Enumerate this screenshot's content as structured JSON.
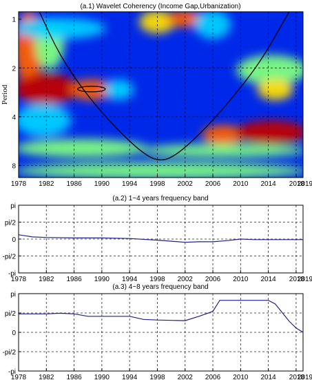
{
  "chart_data": [
    {
      "type": "heatmap",
      "title": "(a.1)  Wavelet Coherency (Income Gap,Urbanization)",
      "ylabel": "Period",
      "xlabel": "",
      "x_ticks": [
        "1978",
        "1982",
        "1986",
        "1990",
        "1994",
        "1998",
        "2002",
        "2006",
        "2010",
        "2014",
        "2018",
        "2019"
      ],
      "y_ticks": [
        "1",
        "2",
        "4",
        "8"
      ],
      "xlim": [
        1978,
        2019
      ],
      "ylim_period": [
        0.9,
        9.5
      ],
      "y_scale": "log2",
      "grid": true,
      "colormap": [
        "#00008f",
        "#0030ff",
        "#00d0ff",
        "#80ff80",
        "#ffe000",
        "#ff6000",
        "#c00000"
      ],
      "cone_of_influence": {
        "x": [
          1981,
          1984,
          1988,
          1992,
          1996,
          1998.5,
          2001,
          2005,
          2009,
          2013,
          2017
        ],
        "period": [
          0.9,
          1.7,
          3.0,
          4.7,
          6.8,
          7.6,
          6.8,
          4.7,
          3.0,
          1.8,
          0.9
        ]
      },
      "significance_contour": {
        "x_range": [
          1986.5,
          1990.5
        ],
        "period_center": 2.7
      },
      "regions": [
        {
          "x": [
            1978,
            1981
          ],
          "p": [
            0.9,
            2.5
          ],
          "v": 0.85
        },
        {
          "x": [
            1981,
            1984
          ],
          "p": [
            1.0,
            2.0
          ],
          "v": 0.55
        },
        {
          "x": [
            1978,
            1986
          ],
          "p": [
            2.2,
            3.3
          ],
          "v": 0.95
        },
        {
          "x": [
            1986,
            1991
          ],
          "p": [
            2.4,
            3.1
          ],
          "v": 0.9
        },
        {
          "x": [
            1991,
            1994
          ],
          "p": [
            2.4,
            3.1
          ],
          "v": 0.4
        },
        {
          "x": [
            1978,
            1985
          ],
          "p": [
            3.4,
            5.2
          ],
          "v": 0.35
        },
        {
          "x": [
            1996,
            2000
          ],
          "p": [
            0.9,
            1.2
          ],
          "v": 0.7
        },
        {
          "x": [
            2000,
            2004
          ],
          "p": [
            0.9,
            1.1
          ],
          "v": 0.9
        },
        {
          "x": [
            2004,
            2008
          ],
          "p": [
            0.9,
            1.3
          ],
          "v": 0.4
        },
        {
          "x": [
            2010,
            2019
          ],
          "p": [
            1.7,
            2.5
          ],
          "v": 0.45
        },
        {
          "x": [
            2013,
            2017
          ],
          "p": [
            2.4,
            3.1
          ],
          "v": 0.65
        },
        {
          "x": [
            2005,
            2010
          ],
          "p": [
            4.6,
            5.8
          ],
          "v": 0.75
        },
        {
          "x": [
            2010,
            2019
          ],
          "p": [
            4.3,
            5.8
          ],
          "v": 0.92
        },
        {
          "x": [
            1978,
            1996
          ],
          "p": [
            5.6,
            7.0
          ],
          "v": 0.55
        },
        {
          "x": [
            1996,
            2019
          ],
          "p": [
            6.0,
            7.0
          ],
          "v": 0.45
        },
        {
          "x": [
            1978,
            2019
          ],
          "p": [
            7.8,
            9.5
          ],
          "v": 0.5
        },
        {
          "x": [
            1978,
            1990
          ],
          "p": [
            1.0,
            1.3
          ],
          "v": 0.35
        }
      ]
    },
    {
      "type": "line",
      "title": "(a.2)  1~4 years frequency band",
      "x_ticks": [
        "1978",
        "1982",
        "1986",
        "1990",
        "1994",
        "1998",
        "2002",
        "2006",
        "2010",
        "2014",
        "2018",
        "2019"
      ],
      "y_ticks": [
        "pi",
        "pi/2",
        "0",
        "-pi/2",
        "-pi"
      ],
      "xlim": [
        1978,
        2019
      ],
      "ylim": [
        -3.1416,
        3.1416
      ],
      "grid": true,
      "series": [
        {
          "color": "#1f1f8f",
          "x": [
            1978,
            1979,
            1980,
            1982,
            1986,
            1990,
            1994,
            1998,
            2000,
            2002,
            2004,
            2006,
            2008,
            2010,
            2012,
            2014,
            2016,
            2018,
            2019
          ],
          "y": [
            0.4,
            0.3,
            0.2,
            0.15,
            0.1,
            0.1,
            0.05,
            -0.1,
            -0.2,
            -0.3,
            -0.25,
            -0.25,
            -0.15,
            0.0,
            -0.05,
            -0.05,
            -0.05,
            -0.05,
            -0.05
          ]
        }
      ]
    },
    {
      "type": "line",
      "title": "(a.3)  4~8 years frequency band",
      "x_ticks": [
        "1978",
        "1982",
        "1986",
        "1990",
        "1994",
        "1998",
        "2002",
        "2006",
        "2010",
        "2014",
        "2018",
        "2019"
      ],
      "y_ticks": [
        "pi",
        "pi/2",
        "0",
        "-pi/2",
        "-pi"
      ],
      "xlim": [
        1978,
        2019
      ],
      "ylim": [
        -3.1416,
        3.1416
      ],
      "grid": true,
      "series": [
        {
          "color": "#1f1f8f",
          "x": [
            1978,
            1982,
            1984,
            1986,
            1988,
            1990,
            1994,
            1996,
            1998,
            2002,
            2004,
            2006,
            2007,
            2008,
            2010,
            2014,
            2015,
            2016,
            2017,
            2018,
            2019
          ],
          "y": [
            1.5,
            1.5,
            1.55,
            1.5,
            1.3,
            1.3,
            1.3,
            1.05,
            1.0,
            0.95,
            1.3,
            1.7,
            2.6,
            2.6,
            2.6,
            2.6,
            2.3,
            1.6,
            0.9,
            0.35,
            0.0
          ]
        }
      ]
    }
  ]
}
